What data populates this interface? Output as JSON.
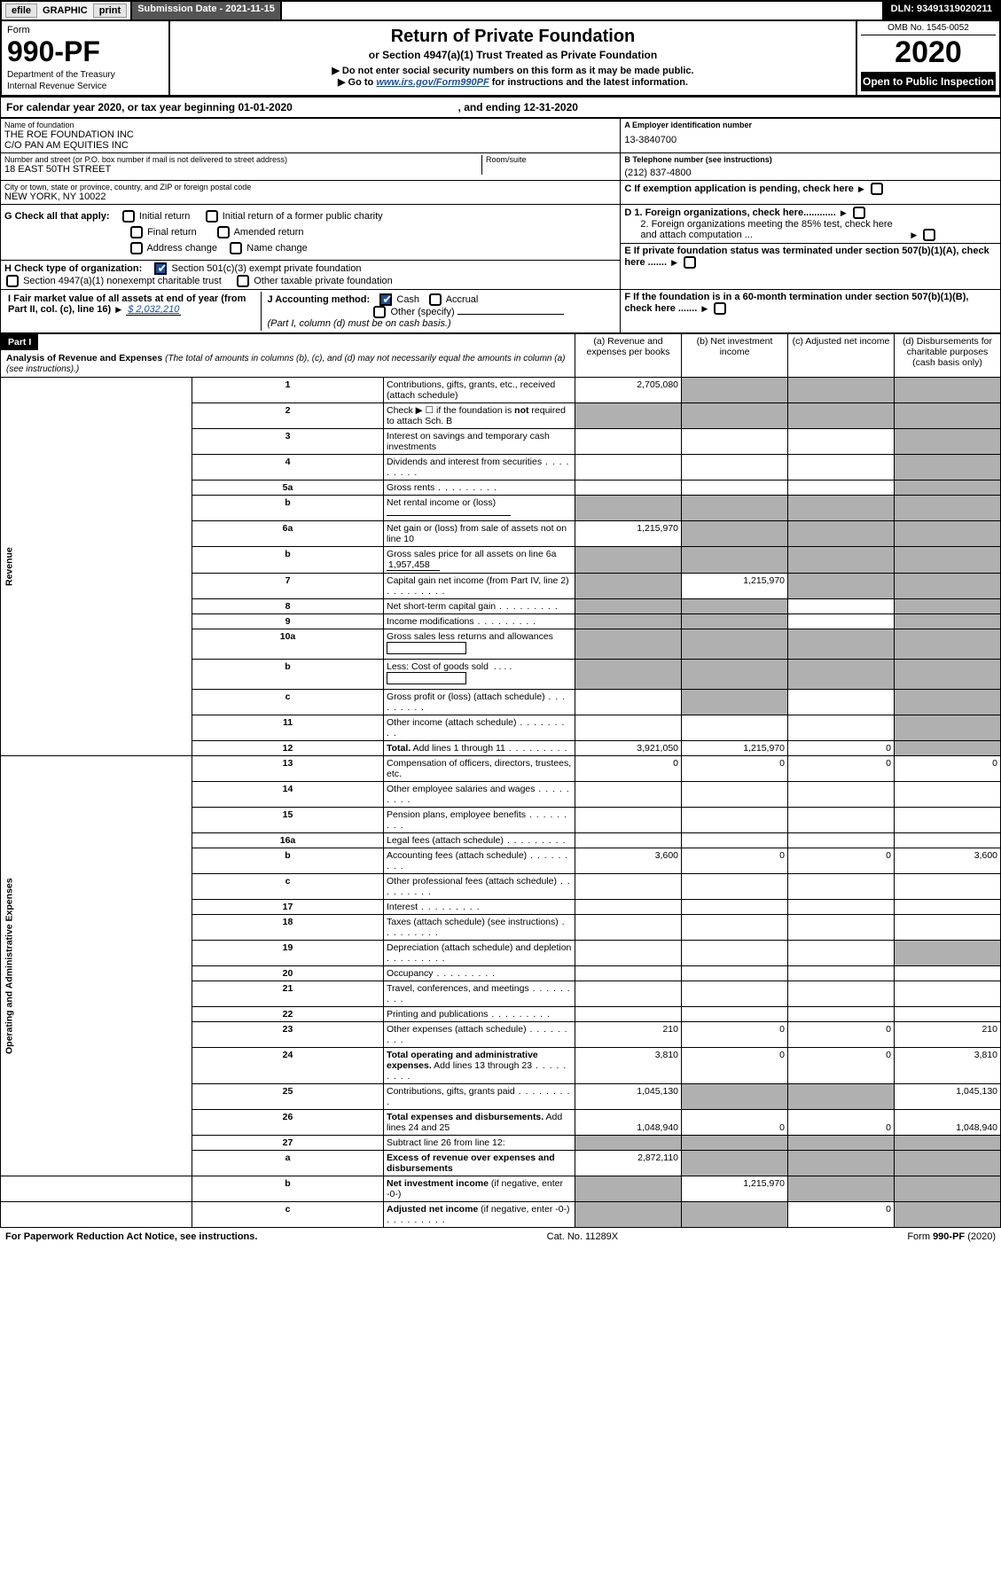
{
  "topbar": {
    "efile": "efile",
    "graphic": "GRAPHIC",
    "print": "print",
    "submission_label": "Submission Date - 2021-11-15",
    "dln": "DLN: 93491319020211"
  },
  "header": {
    "form_word": "Form",
    "form_no": "990-PF",
    "dept": "Department of the Treasury",
    "irs": "Internal Revenue Service",
    "title": "Return of Private Foundation",
    "subtitle": "or Section 4947(a)(1) Trust Treated as Private Foundation",
    "instr1": "▶ Do not enter social security numbers on this form as it may be made public.",
    "instr2_pre": "▶ Go to ",
    "instr2_link": "www.irs.gov/Form990PF",
    "instr2_post": " for instructions and the latest information.",
    "omb": "OMB No. 1545-0052",
    "year": "2020",
    "open_pub": "Open to Public Inspection"
  },
  "cal": {
    "text_pre": "For calendar year 2020, or tax year beginning ",
    "begin": "01-01-2020",
    "text_mid": " , and ending ",
    "end": "12-31-2020"
  },
  "ident": {
    "name_lbl": "Name of foundation",
    "name1": "THE ROE FOUNDATION INC",
    "name2": "C/O PAN AM EQUITIES INC",
    "ein_lbl": "A Employer identification number",
    "ein": "13-3840700",
    "addr_lbl": "Number and street (or P.O. box number if mail is not delivered to street address)",
    "addr": "18 EAST 50TH STREET",
    "room_lbl": "Room/suite",
    "phone_lbl": "B Telephone number (see instructions)",
    "phone": "(212) 837-4800",
    "city_lbl": "City or town, state or province, country, and ZIP or foreign postal code",
    "city": "NEW YORK, NY  10022",
    "c_lbl": "C If exemption application is pending, check here"
  },
  "checks": {
    "g_lbl": "G Check all that apply:",
    "g1": "Initial return",
    "g2": "Initial return of a former public charity",
    "g3": "Final return",
    "g4": "Amended return",
    "g5": "Address change",
    "g6": "Name change",
    "d1": "D 1. Foreign organizations, check here............",
    "d2": "2. Foreign organizations meeting the 85% test, check here and attach computation ...",
    "h_lbl": "H Check type of organization:",
    "h1": "Section 501(c)(3) exempt private foundation",
    "h2": "Section 4947(a)(1) nonexempt charitable trust",
    "h3": "Other taxable private foundation",
    "e_lbl": "E  If private foundation status was terminated under section 507(b)(1)(A), check here .......",
    "i_lbl": "I Fair market value of all assets at end of year (from Part II, col. (c), line 16)",
    "i_val": "$  2,032,210",
    "j_lbl": "J Accounting method:",
    "j1": "Cash",
    "j2": "Accrual",
    "j3": "Other (specify)",
    "j_note": "(Part I, column (d) must be on cash basis.)",
    "f_lbl": "F  If the foundation is in a 60-month termination under section 507(b)(1)(B), check here ......."
  },
  "part1": {
    "label": "Part I",
    "title": "Analysis of Revenue and Expenses",
    "title_note": " (The total of amounts in columns (b), (c), and (d) may not necessarily equal the amounts in column (a) (see instructions).)",
    "col_a": "(a)   Revenue and expenses per books",
    "col_b": "(b)   Net investment income",
    "col_c": "(c)  Adjusted net income",
    "col_d": "(d)  Disbursements for charitable purposes (cash basis only)",
    "sections": {
      "revenue": "Revenue",
      "expenses": "Operating and Administrative Expenses"
    }
  },
  "lines": {
    "1": {
      "t": "Contributions, gifts, grants, etc., received (attach schedule)",
      "a": "2,705,080"
    },
    "2": {
      "t": "Check ▶ ☐ if the foundation is <b>not</b> required to attach Sch. B"
    },
    "3": {
      "t": "Interest on savings and temporary cash investments"
    },
    "4": {
      "t": "Dividends and interest from securities"
    },
    "5a": {
      "t": "Gross rents"
    },
    "5b": {
      "t": "Net rental income or (loss)"
    },
    "6a": {
      "t": "Net gain or (loss) from sale of assets not on line 10",
      "a": "1,215,970"
    },
    "6b": {
      "t": "Gross sales price for all assets on line 6a",
      "inline": "1,957,458"
    },
    "7": {
      "t": "Capital gain net income (from Part IV, line 2)",
      "b": "1,215,970"
    },
    "8": {
      "t": "Net short-term capital gain"
    },
    "9": {
      "t": "Income modifications"
    },
    "10a": {
      "t": "Gross sales less returns and allowances"
    },
    "10b": {
      "t": "Less: Cost of goods sold"
    },
    "10c": {
      "t": "Gross profit or (loss) (attach schedule)"
    },
    "11": {
      "t": "Other income (attach schedule)"
    },
    "12": {
      "t": "<b>Total.</b> Add lines 1 through 11",
      "a": "3,921,050",
      "b": "1,215,970",
      "c": "0"
    },
    "13": {
      "t": "Compensation of officers, directors, trustees, etc.",
      "a": "0",
      "b": "0",
      "c": "0",
      "d": "0"
    },
    "14": {
      "t": "Other employee salaries and wages"
    },
    "15": {
      "t": "Pension plans, employee benefits"
    },
    "16a": {
      "t": "Legal fees (attach schedule)"
    },
    "16b": {
      "t": "Accounting fees (attach schedule)",
      "a": "3,600",
      "b": "0",
      "c": "0",
      "d": "3,600"
    },
    "16c": {
      "t": "Other professional fees (attach schedule)"
    },
    "17": {
      "t": "Interest"
    },
    "18": {
      "t": "Taxes (attach schedule) (see instructions)"
    },
    "19": {
      "t": "Depreciation (attach schedule) and depletion"
    },
    "20": {
      "t": "Occupancy"
    },
    "21": {
      "t": "Travel, conferences, and meetings"
    },
    "22": {
      "t": "Printing and publications"
    },
    "23": {
      "t": "Other expenses (attach schedule)",
      "a": "210",
      "b": "0",
      "c": "0",
      "d": "210"
    },
    "24": {
      "t": "<b>Total operating and administrative expenses.</b> Add lines 13 through 23",
      "a": "3,810",
      "b": "0",
      "c": "0",
      "d": "3,810"
    },
    "25": {
      "t": "Contributions, gifts, grants paid",
      "a": "1,045,130",
      "d": "1,045,130"
    },
    "26": {
      "t": "<b>Total expenses and disbursements.</b> Add lines 24 and 25",
      "a": "1,048,940",
      "b": "0",
      "c": "0",
      "d": "1,048,940"
    },
    "27": {
      "t": "Subtract line 26 from line 12:"
    },
    "27a": {
      "t": "<b>Excess of revenue over expenses and disbursements</b>",
      "a": "2,872,110"
    },
    "27b": {
      "t": "<b>Net investment income</b> (if negative, enter -0-)",
      "b": "1,215,970"
    },
    "27c": {
      "t": "<b>Adjusted net income</b> (if negative, enter -0-)",
      "c": "0"
    }
  },
  "footer": {
    "left": "For Paperwork Reduction Act Notice, see instructions.",
    "mid": "Cat. No. 11289X",
    "right": "Form 990-PF (2020)"
  },
  "colors": {
    "link": "#1a4fa3",
    "shade": "#b0b0b0",
    "black": "#000000"
  }
}
